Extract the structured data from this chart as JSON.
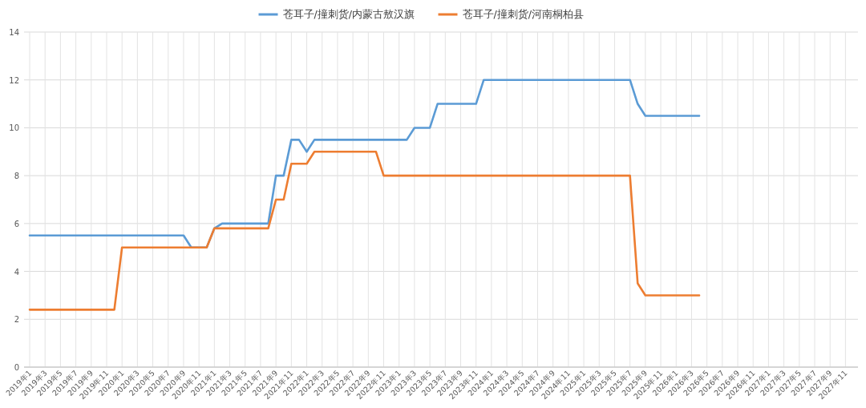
{
  "chart_data": {
    "type": "line",
    "categories": [
      "2019年1",
      null,
      "2019年3",
      null,
      "2019年5",
      null,
      "2019年7",
      null,
      "2019年9",
      null,
      "2019年11",
      null,
      "2020年1",
      null,
      "2020年3",
      null,
      "2020年5",
      null,
      "2020年7",
      null,
      "2020年9",
      null,
      "2020年11",
      null,
      "2021年1",
      null,
      "2021年3",
      null,
      "2021年5",
      null,
      "2021年7",
      null,
      "2021年9",
      null,
      "2021年11",
      null,
      "2022年1",
      null,
      "2022年3",
      null,
      "2022年5",
      null,
      "2022年7",
      null,
      "2022年9",
      null,
      "2022年11",
      null,
      "2023年1",
      null,
      "2023年3",
      null,
      "2023年5",
      null,
      "2023年7",
      null,
      "2023年9",
      null,
      "2023年11",
      null,
      "2024年1",
      null,
      "2024年3",
      null,
      "2024年5",
      null,
      "2024年7",
      null,
      "2024年9",
      null,
      "2024年11",
      null,
      "2025年1",
      null,
      "2025年3",
      null,
      "2025年5",
      null,
      "2025年7",
      null,
      "2025年9",
      null,
      "2025年11",
      null,
      "2026年1",
      null,
      "2026年3",
      null,
      "2026年5",
      null,
      "2026年7",
      null,
      "2026年9",
      null,
      "2026年11",
      null,
      "2027年1",
      null,
      "2027年3",
      null,
      "2027年5",
      null,
      "2027年7",
      null,
      "2027年9",
      null,
      "2027年11",
      null
    ],
    "series": [
      {
        "name": "苍耳子/撞刺货/内蒙古敖汉旗",
        "color": "#5b9bd5",
        "values": [
          5.5,
          5.5,
          5.5,
          5.5,
          5.5,
          5.5,
          5.5,
          5.5,
          5.5,
          5.5,
          5.5,
          5.5,
          5.5,
          5.5,
          5.5,
          5.5,
          5.5,
          5.5,
          5.5,
          5.5,
          5.5,
          5,
          5,
          5,
          5.8,
          6,
          6,
          6,
          6,
          6,
          6,
          6,
          8,
          8,
          9.5,
          9.5,
          9,
          9.5,
          9.5,
          9.5,
          9.5,
          9.5,
          9.5,
          9.5,
          9.5,
          9.5,
          9.5,
          9.5,
          9.5,
          9.5,
          10,
          10,
          10,
          11,
          11,
          11,
          11,
          11,
          11,
          12,
          12,
          12,
          12,
          12,
          12,
          12,
          12,
          12,
          12,
          12,
          12,
          12,
          12,
          12,
          12,
          12,
          12,
          12,
          12,
          11,
          10.5,
          10.5,
          10.5,
          10.5,
          10.5,
          10.5,
          10.5,
          10.5,
          null,
          null,
          null,
          null,
          null,
          null,
          null,
          null,
          null,
          null,
          null,
          null,
          null,
          null,
          null,
          null,
          null,
          null,
          null,
          null
        ]
      },
      {
        "name": "苍耳子/撞刺货/河南桐柏县",
        "color": "#ed7d31",
        "values": [
          2.4,
          2.4,
          2.4,
          2.4,
          2.4,
          2.4,
          2.4,
          2.4,
          2.4,
          2.4,
          2.4,
          2.4,
          5,
          5,
          5,
          5,
          5,
          5,
          5,
          5,
          5,
          5,
          5,
          5,
          5.8,
          5.8,
          5.8,
          5.8,
          5.8,
          5.8,
          5.8,
          5.8,
          7,
          7,
          8.5,
          8.5,
          8.5,
          9,
          9,
          9,
          9,
          9,
          9,
          9,
          9,
          9,
          8,
          8,
          8,
          8,
          8,
          8,
          8,
          8,
          8,
          8,
          8,
          8,
          8,
          8,
          8,
          8,
          8,
          8,
          8,
          8,
          8,
          8,
          8,
          8,
          8,
          8,
          8,
          8,
          8,
          8,
          8,
          8,
          8,
          3.5,
          3,
          3,
          3,
          3,
          3,
          3,
          3,
          3,
          null,
          null,
          null,
          null,
          null,
          null,
          null,
          null,
          null,
          null,
          null,
          null,
          null,
          null,
          null,
          null,
          null,
          null,
          null,
          null
        ]
      }
    ],
    "ylim": [
      0,
      14
    ],
    "yticks": [
      0,
      2,
      4,
      6,
      8,
      10,
      12,
      14
    ],
    "grid": true,
    "legend": "top"
  }
}
